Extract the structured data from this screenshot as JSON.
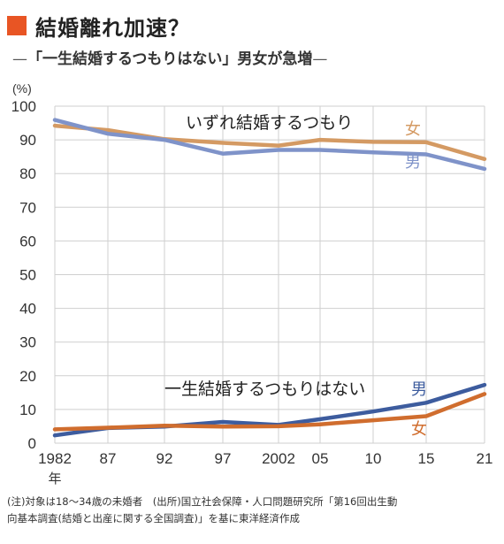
{
  "header": {
    "title": "結婚離れ加速？",
    "subtitle_dash_left": "—",
    "subtitle": "「一生結婚するつもりはない」男女が急増",
    "subtitle_dash_right": "—"
  },
  "footer": {
    "note_line1": "(注)対象は18〜34歳の未婚者　(出所)国立社会保障・人口問題研究所「第16回出生動",
    "note_line2": "向基本調査(結婚と出産に関する全国調査)」を基に東洋経済作成"
  },
  "chart_data": {
    "type": "line",
    "ylabel": "(%)",
    "ylim": [
      0,
      100
    ],
    "yticks": [
      0,
      10,
      20,
      30,
      40,
      50,
      60,
      70,
      80,
      90,
      100
    ],
    "x": [
      1982,
      1987,
      1992,
      1997,
      2002,
      2005,
      2010,
      2015,
      2021
    ],
    "xtick_labels": [
      "1982",
      "87",
      "92",
      "97",
      "2002",
      "05",
      "10",
      "15",
      "21"
    ],
    "xtick_suffix": "年",
    "grid": true,
    "groups": [
      {
        "label": "いずれ結婚するつもり",
        "series": [
          {
            "name": "女",
            "color": "#d49a63",
            "values": [
              94.2,
              92.9,
              90.2,
              89.1,
              88.3,
              90.0,
              89.4,
              89.3,
              84.3
            ]
          },
          {
            "name": "男",
            "color": "#7f93c9",
            "values": [
              95.9,
              91.8,
              90.0,
              85.9,
              87.0,
              87.0,
              86.3,
              85.7,
              81.4
            ]
          }
        ]
      },
      {
        "label": "一生結婚するつもりはない",
        "series": [
          {
            "name": "男",
            "color": "#3d5c9e",
            "values": [
              2.3,
              4.5,
              4.9,
              6.3,
              5.4,
              7.1,
              9.4,
              12.0,
              17.3
            ]
          },
          {
            "name": "女",
            "color": "#d06d2e",
            "values": [
              4.1,
              4.6,
              5.2,
              4.9,
              5.0,
              5.6,
              6.8,
              8.0,
              14.6
            ]
          }
        ]
      }
    ]
  }
}
